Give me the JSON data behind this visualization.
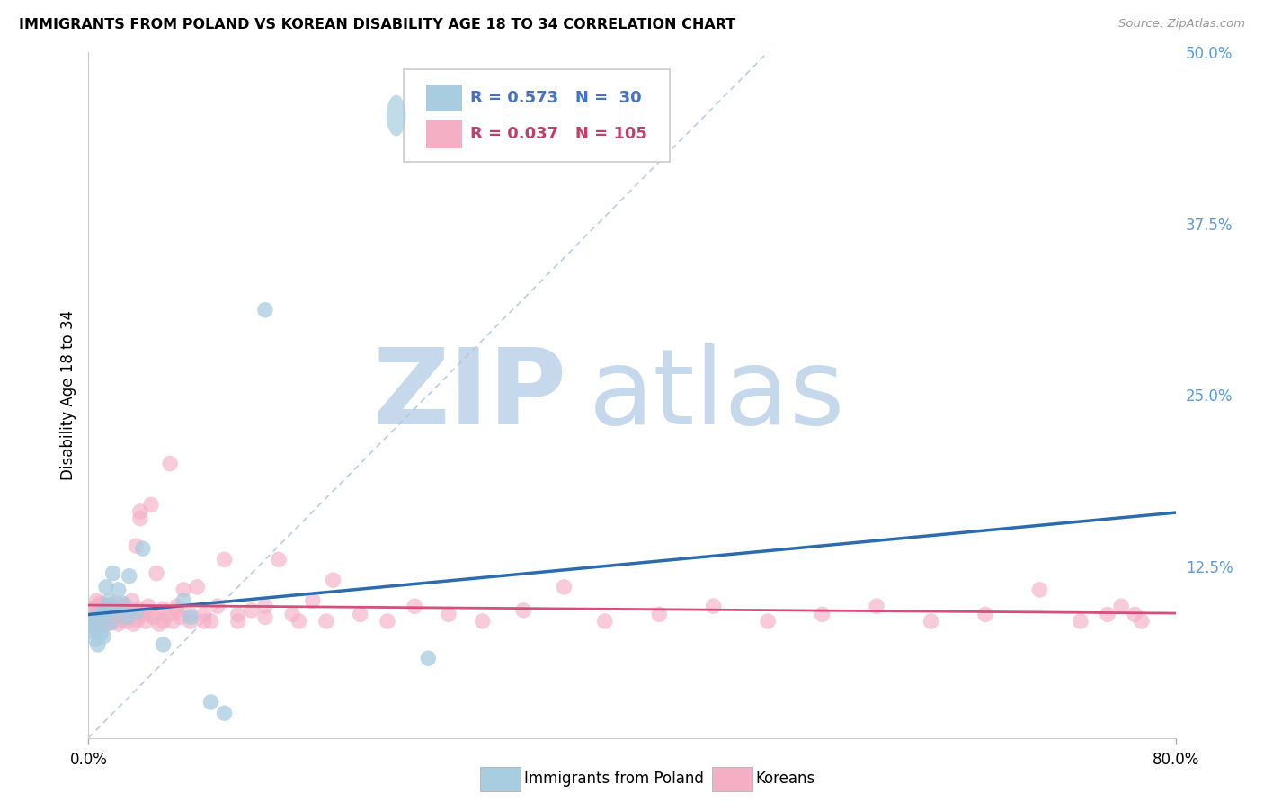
{
  "title": "IMMIGRANTS FROM POLAND VS KOREAN DISABILITY AGE 18 TO 34 CORRELATION CHART",
  "source": "Source: ZipAtlas.com",
  "ylabel": "Disability Age 18 to 34",
  "xlim": [
    0.0,
    0.8
  ],
  "ylim": [
    0.0,
    0.5
  ],
  "poland_R": 0.573,
  "poland_N": 30,
  "korean_R": 0.037,
  "korean_N": 105,
  "poland_color": "#a8cce0",
  "korean_color": "#f4afc5",
  "poland_line_color": "#2b6cb0",
  "korean_line_color": "#d44f7a",
  "ref_line_color": "#b0c8e8",
  "background_color": "#ffffff",
  "grid_color": "#e0e0e0",
  "watermark_zip_color": "#c5d8ec",
  "watermark_atlas_color": "#c5d8ec",
  "legend_poland_label": "Immigrants from Poland",
  "legend_korean_label": "Koreans",
  "right_axis_color": "#5b9bd5",
  "legend_text_blue": "#4472c4",
  "legend_text_pink": "#c0406a",
  "y_ticks_right": [
    0.0,
    0.125,
    0.25,
    0.375,
    0.5
  ],
  "y_tick_labels_right": [
    "",
    "12.5%",
    "25.0%",
    "37.5%",
    "50.0%"
  ],
  "poland_scatter_x": [
    0.002,
    0.003,
    0.004,
    0.005,
    0.006,
    0.007,
    0.008,
    0.009,
    0.01,
    0.011,
    0.012,
    0.013,
    0.014,
    0.015,
    0.016,
    0.018,
    0.02,
    0.022,
    0.025,
    0.028,
    0.03,
    0.035,
    0.04,
    0.055,
    0.07,
    0.075,
    0.09,
    0.1,
    0.13,
    0.25
  ],
  "poland_scatter_y": [
    0.082,
    0.078,
    0.086,
    0.072,
    0.08,
    0.068,
    0.09,
    0.076,
    0.088,
    0.074,
    0.092,
    0.11,
    0.096,
    0.1,
    0.084,
    0.12,
    0.094,
    0.108,
    0.098,
    0.088,
    0.118,
    0.092,
    0.138,
    0.068,
    0.1,
    0.088,
    0.026,
    0.018,
    0.312,
    0.058
  ],
  "korean_scatter_x": [
    0.003,
    0.004,
    0.005,
    0.006,
    0.006,
    0.007,
    0.007,
    0.008,
    0.008,
    0.009,
    0.009,
    0.01,
    0.01,
    0.011,
    0.011,
    0.012,
    0.012,
    0.013,
    0.013,
    0.014,
    0.014,
    0.015,
    0.015,
    0.016,
    0.016,
    0.017,
    0.017,
    0.018,
    0.019,
    0.02,
    0.021,
    0.022,
    0.023,
    0.024,
    0.025,
    0.026,
    0.027,
    0.028,
    0.029,
    0.03,
    0.032,
    0.033,
    0.034,
    0.035,
    0.036,
    0.037,
    0.038,
    0.04,
    0.042,
    0.044,
    0.046,
    0.048,
    0.05,
    0.052,
    0.055,
    0.058,
    0.06,
    0.062,
    0.065,
    0.068,
    0.07,
    0.075,
    0.08,
    0.085,
    0.09,
    0.095,
    0.1,
    0.11,
    0.12,
    0.13,
    0.14,
    0.155,
    0.165,
    0.18,
    0.2,
    0.22,
    0.24,
    0.265,
    0.29,
    0.32,
    0.35,
    0.38,
    0.42,
    0.46,
    0.5,
    0.54,
    0.58,
    0.62,
    0.66,
    0.7,
    0.73,
    0.75,
    0.76,
    0.77,
    0.775,
    0.038,
    0.045,
    0.055,
    0.065,
    0.075,
    0.085,
    0.11,
    0.13,
    0.15,
    0.175
  ],
  "korean_scatter_y": [
    0.09,
    0.095,
    0.085,
    0.1,
    0.092,
    0.088,
    0.096,
    0.084,
    0.093,
    0.087,
    0.098,
    0.083,
    0.094,
    0.089,
    0.097,
    0.085,
    0.093,
    0.088,
    0.096,
    0.083,
    0.091,
    0.086,
    0.094,
    0.089,
    0.097,
    0.084,
    0.092,
    0.087,
    0.095,
    0.09,
    0.098,
    0.083,
    0.091,
    0.086,
    0.094,
    0.089,
    0.097,
    0.085,
    0.093,
    0.088,
    0.1,
    0.083,
    0.091,
    0.14,
    0.086,
    0.094,
    0.165,
    0.09,
    0.085,
    0.096,
    0.17,
    0.088,
    0.12,
    0.083,
    0.094,
    0.089,
    0.2,
    0.085,
    0.093,
    0.088,
    0.108,
    0.085,
    0.11,
    0.09,
    0.085,
    0.096,
    0.13,
    0.085,
    0.093,
    0.088,
    0.13,
    0.085,
    0.1,
    0.115,
    0.09,
    0.085,
    0.096,
    0.09,
    0.085,
    0.093,
    0.11,
    0.085,
    0.09,
    0.096,
    0.085,
    0.09,
    0.096,
    0.085,
    0.09,
    0.108,
    0.085,
    0.09,
    0.096,
    0.09,
    0.085,
    0.16,
    0.09,
    0.085,
    0.096,
    0.09,
    0.085,
    0.09,
    0.096,
    0.09,
    0.085
  ]
}
